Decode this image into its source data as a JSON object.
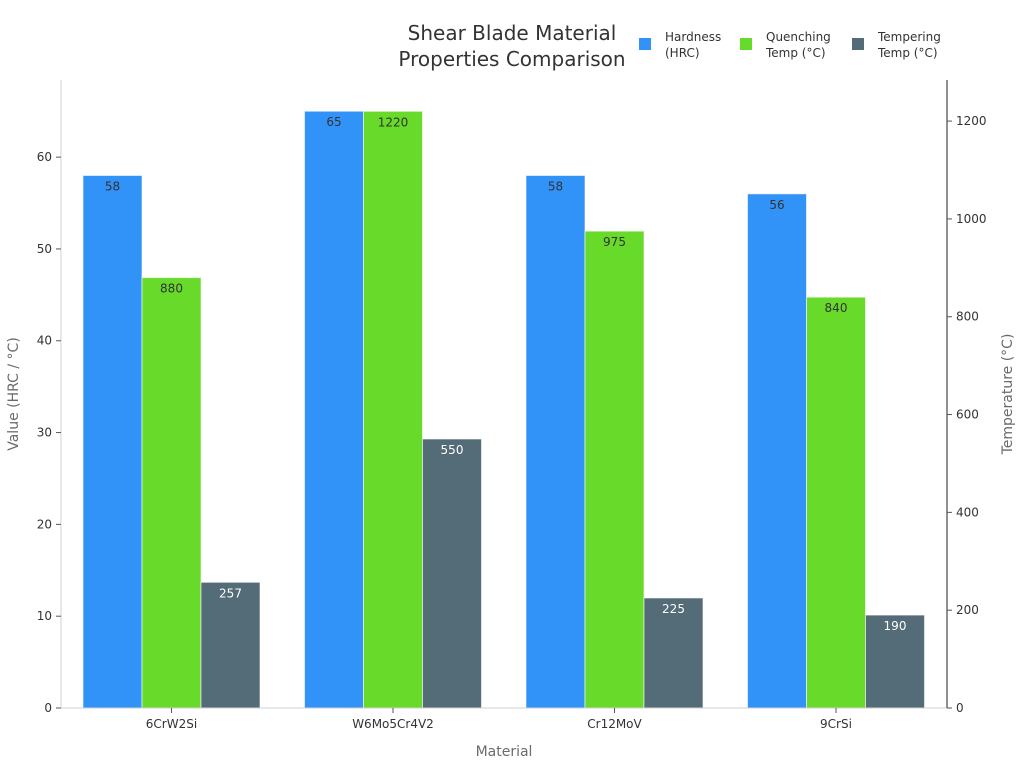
{
  "chart_data": {
    "type": "bar",
    "title": "Shear Blade Material Properties Comparison",
    "title_lines": [
      "Shear Blade Material",
      "Properties Comparison"
    ],
    "xlabel": "Material",
    "ylabel": "Value (HRC / °C)",
    "ylabel_right": "Temperature (°C)",
    "categories": [
      "6CrW2Si",
      "W6Mo5Cr4V2",
      "Cr12MoV",
      "9CrSi"
    ],
    "series": [
      {
        "name": "Hardness (HRC)",
        "legend_lines": [
          "Hardness",
          "(HRC)"
        ],
        "axis": "left",
        "color": "#3192f7",
        "values": [
          58,
          65,
          58,
          56
        ]
      },
      {
        "name": "Quenching Temp (°C)",
        "legend_lines": [
          "Quenching",
          "Temp (°C)"
        ],
        "axis": "right",
        "color": "#68da29",
        "values": [
          880,
          1220,
          975,
          840
        ]
      },
      {
        "name": "Tempering Temp (°C)",
        "legend_lines": [
          "Tempering",
          "Temp (°C)"
        ],
        "axis": "right",
        "color": "#546c77",
        "values": [
          257,
          550,
          225,
          190
        ]
      }
    ],
    "ylim": [
      0,
      68.4
    ],
    "ylim_right": [
      0,
      1284
    ],
    "yticks": [
      0,
      10,
      20,
      30,
      40,
      50,
      60
    ],
    "yticks_right": [
      0,
      200,
      400,
      600,
      800,
      1000,
      1200
    ],
    "grid": false,
    "legend_position": "top-right"
  }
}
